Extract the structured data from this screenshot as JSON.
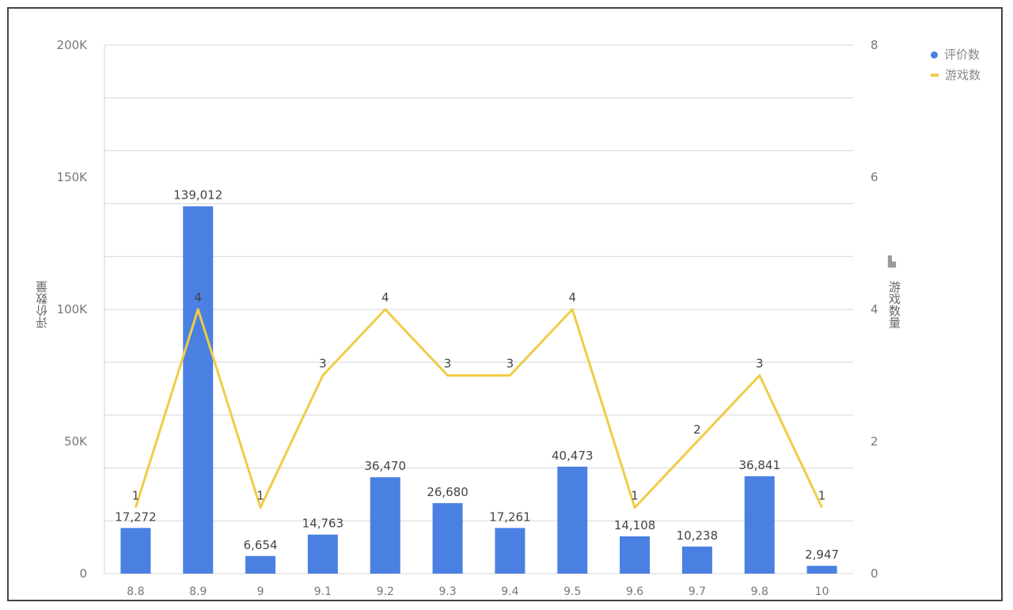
{
  "chart_data": {
    "type": "bar+line",
    "categories": [
      "8.8",
      "8.9",
      "9",
      "9.1",
      "9.2",
      "9.3",
      "9.4",
      "9.5",
      "9.6",
      "9.7",
      "9.8",
      "10"
    ],
    "series": [
      {
        "name": "评价数",
        "type": "bar",
        "axis": "left",
        "color": "#4a80e2",
        "values": [
          17272,
          139012,
          6654,
          14763,
          36470,
          26680,
          17261,
          40473,
          14108,
          10238,
          36841,
          2947
        ],
        "labels": [
          "17,272",
          "139,012",
          "6,654",
          "14,763",
          "36,470",
          "26,680",
          "17,261",
          "40,473",
          "14,108",
          "10,238",
          "36,841",
          "2,947"
        ]
      },
      {
        "name": "游戏数",
        "type": "line",
        "axis": "right",
        "color": "#f0cc45",
        "values": [
          1,
          4,
          1,
          3,
          4,
          3,
          3,
          4,
          1,
          2,
          3,
          1
        ]
      }
    ],
    "ylabel_left": "评价数量",
    "ylabel_right": "游戏数量",
    "ylim_left": [
      0,
      200000
    ],
    "ylim_right": [
      0,
      8
    ],
    "yticks_left": [
      "0",
      "50K",
      "100K",
      "150K",
      "200K"
    ],
    "yticks_right": [
      "0",
      "2",
      "4",
      "6",
      "8"
    ],
    "grid": true,
    "legend_position": "top-right"
  }
}
